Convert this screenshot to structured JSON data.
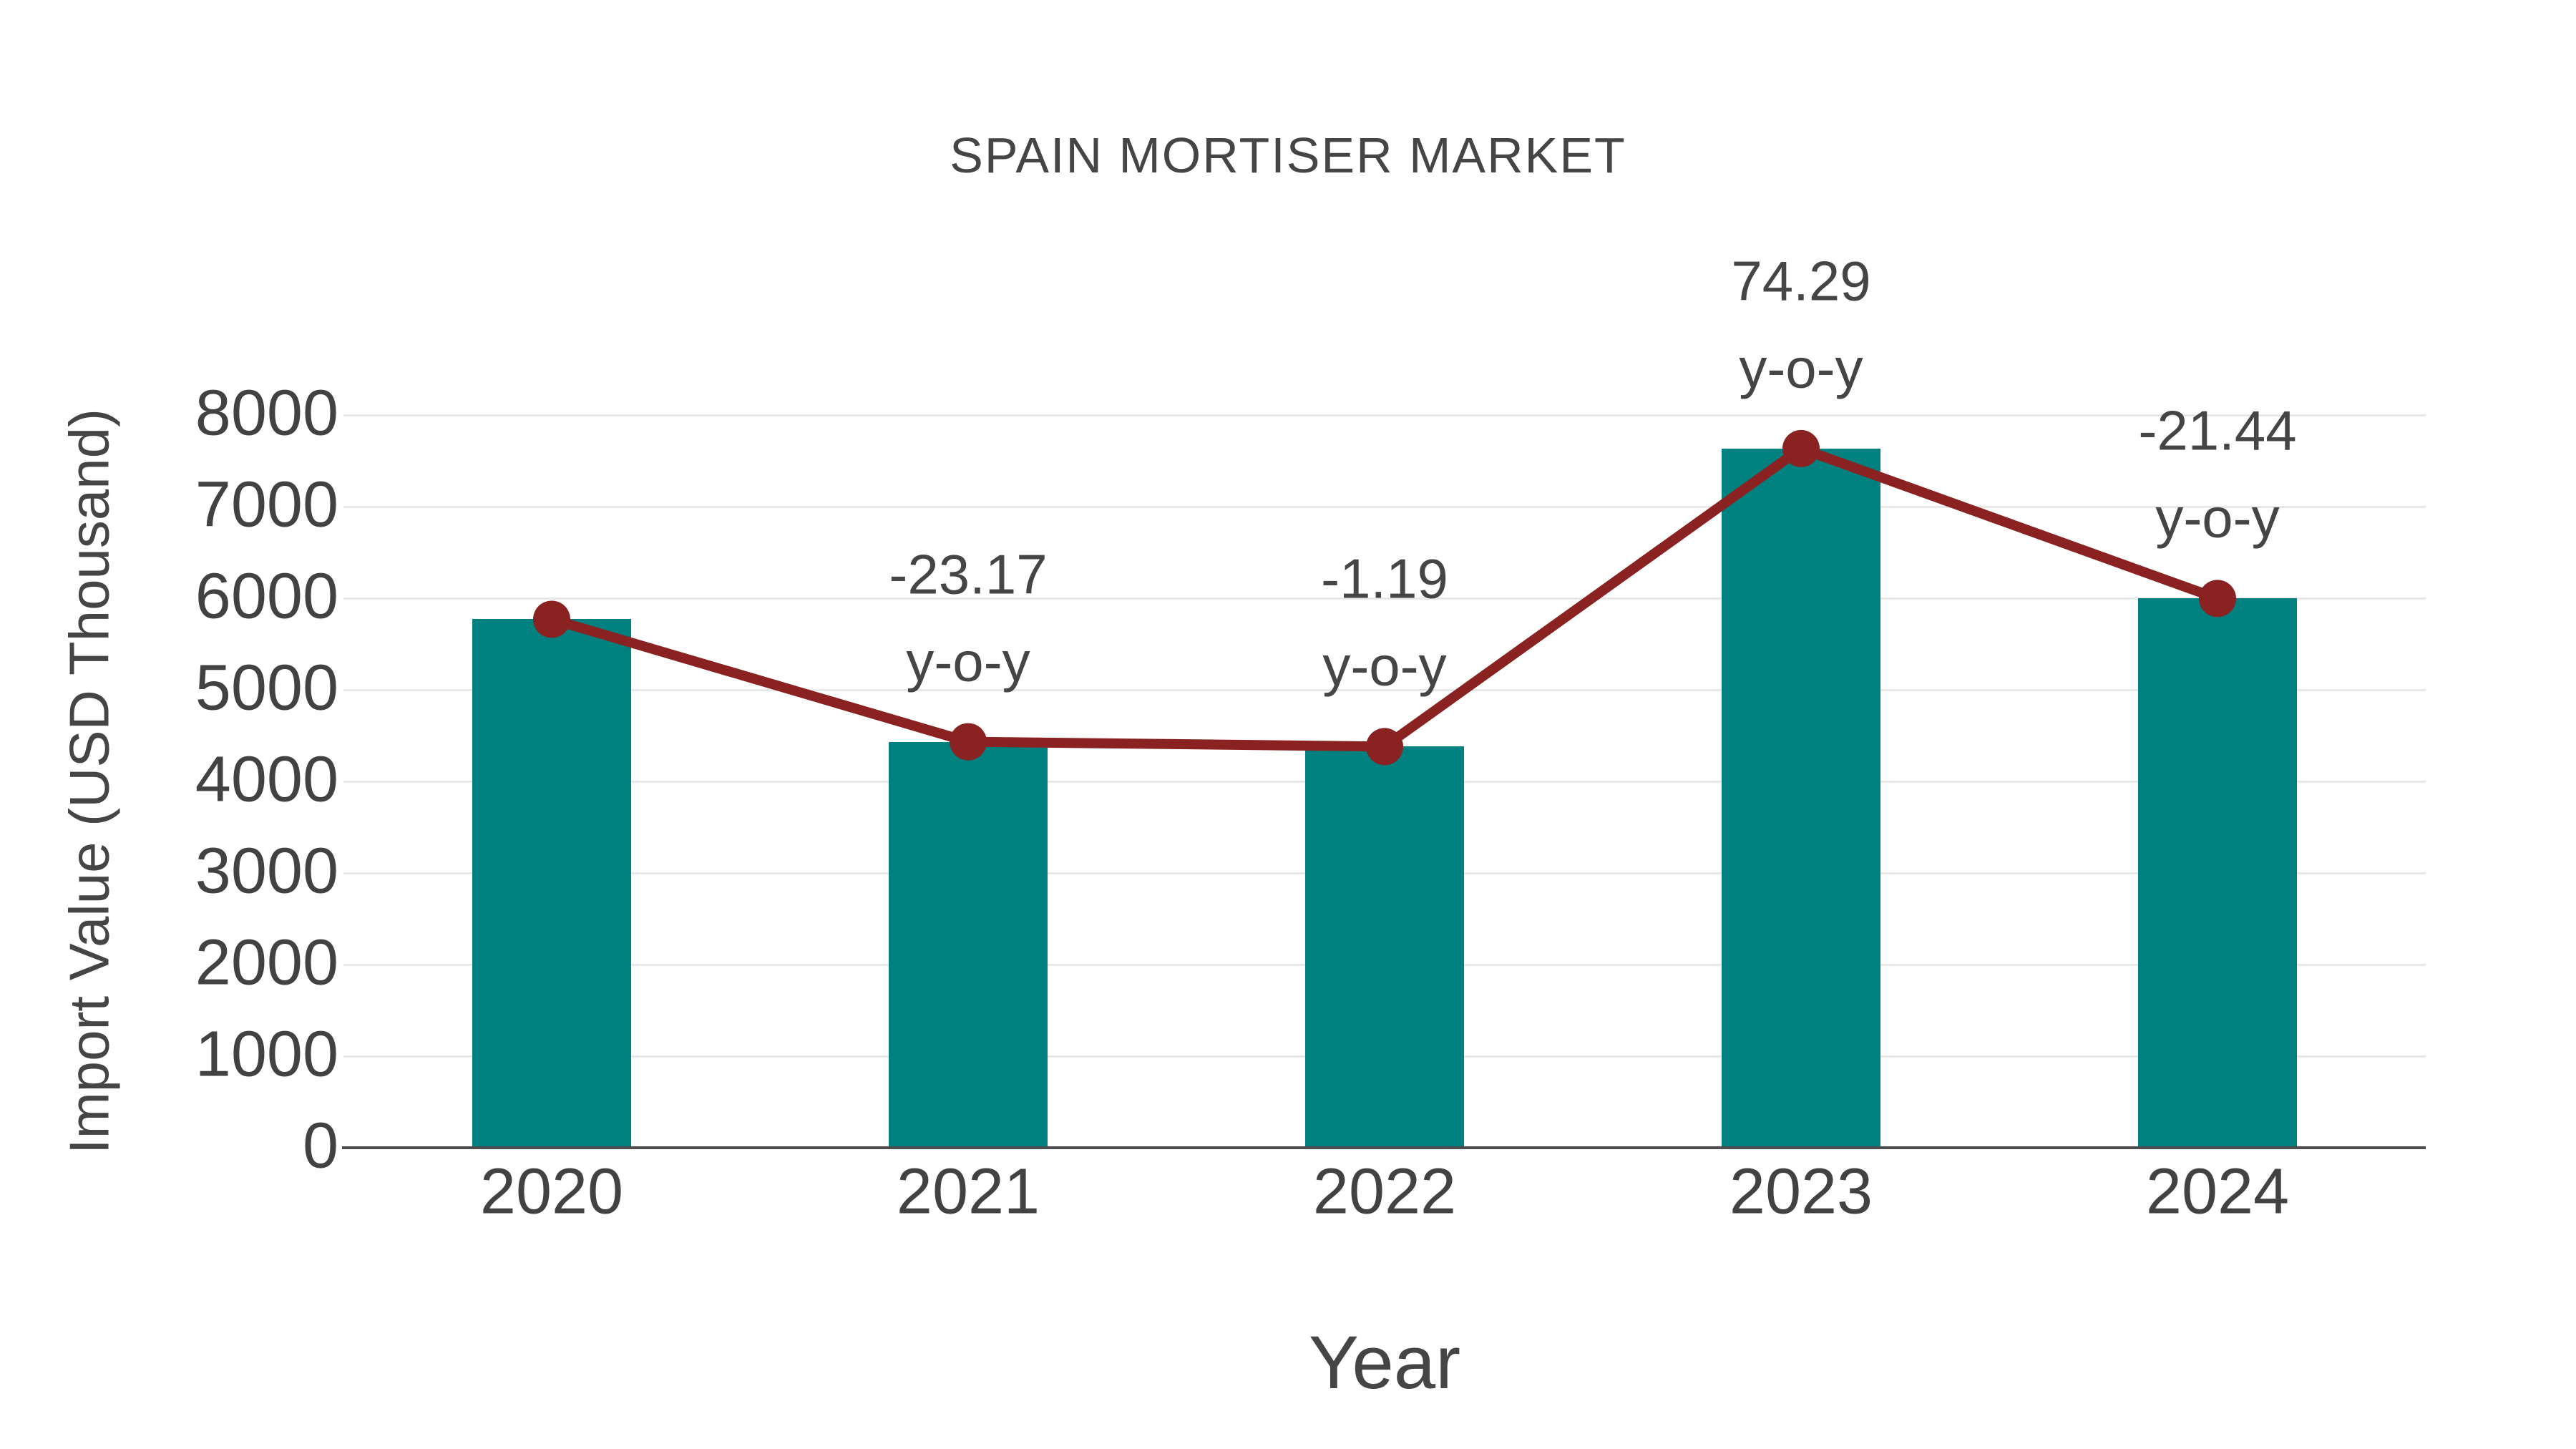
{
  "chart": {
    "title": "SPAIN MORTISER MARKET",
    "x_axis_title": "Year",
    "y_axis_title": "Import Value (USD Thousand)"
  },
  "chart_data": {
    "type": "bar",
    "title": "SPAIN MORTISER MARKET",
    "xlabel": "Year",
    "ylabel": "Import Value (USD Thousand)",
    "categories": [
      "2020",
      "2021",
      "2022",
      "2023",
      "2024"
    ],
    "series": [
      {
        "name": "Import Value bars",
        "type": "bar",
        "values": [
          5770,
          4433,
          4380,
          7634,
          5997
        ]
      },
      {
        "name": "Import Value trend line",
        "type": "line",
        "values": [
          5770,
          4433,
          4380,
          7634,
          5997
        ]
      }
    ],
    "annotations": [
      {
        "category": "2021",
        "value_label": "-23.17",
        "unit_label": "y-o-y"
      },
      {
        "category": "2022",
        "value_label": "-1.19",
        "unit_label": "y-o-y"
      },
      {
        "category": "2023",
        "value_label": "74.29",
        "unit_label": "y-o-y"
      },
      {
        "category": "2024",
        "value_label": "-21.44",
        "unit_label": "y-o-y"
      }
    ],
    "ylim": [
      0,
      8000
    ],
    "ytick_step": 1000,
    "ytick_labels": [
      "0",
      "1000",
      "2000",
      "3000",
      "4000",
      "5000",
      "6000",
      "7000",
      "8000"
    ],
    "grid": "horizontal",
    "legend_position": "none"
  },
  "colors": {
    "bar": "#018080",
    "line": "#8b2222",
    "marker": "#8b2222",
    "text": "#454545",
    "tick_text": "#424242",
    "gridline": "#e8e8e8",
    "axis_line": "#4d4d4d",
    "background": "#ffffff"
  }
}
